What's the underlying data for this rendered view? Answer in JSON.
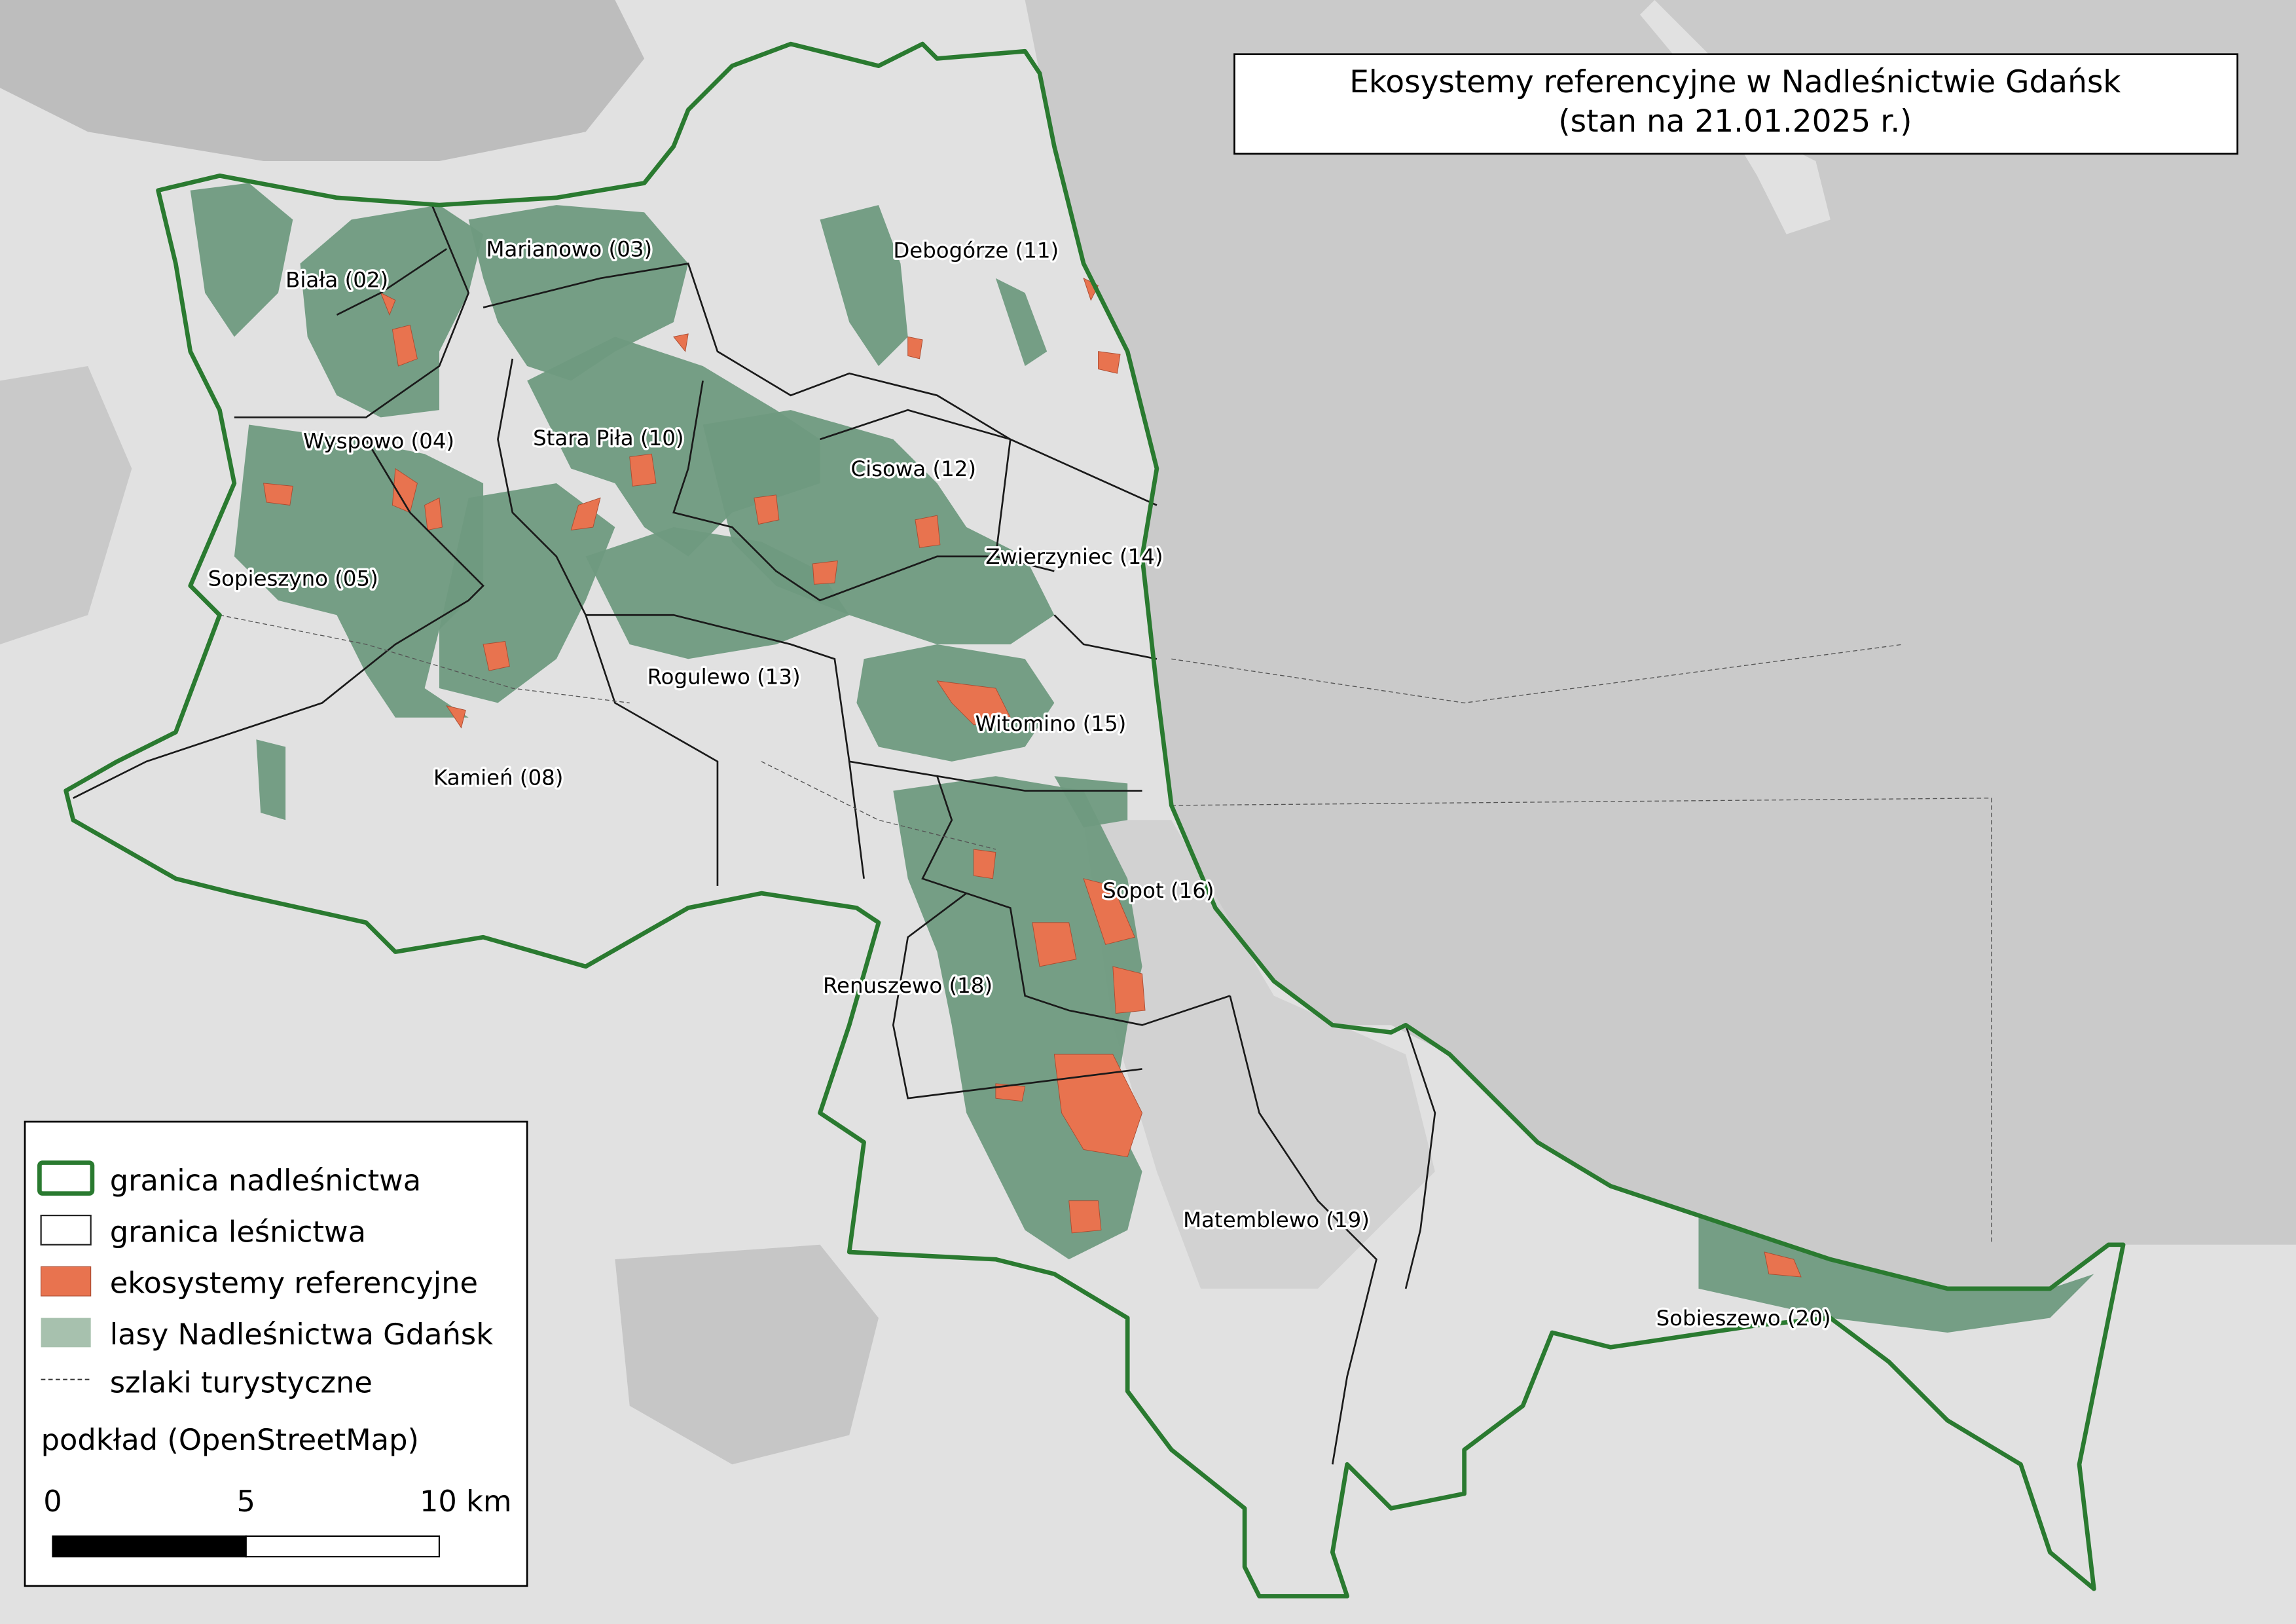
{
  "title": {
    "line1": "Ekosystemy referencyjne w Nadleśnictwie Gdańsk",
    "line2": "(stan na 21.01.2025 r.)"
  },
  "legend": {
    "items": [
      {
        "label": "granica nadleśnictwa",
        "symbol": "green-outline"
      },
      {
        "label": "granica leśnictwa",
        "symbol": "black-outline"
      },
      {
        "label": "ekosystemy referencyjne",
        "symbol": "orange-fill"
      },
      {
        "label": "lasy Nadleśnictwa Gdańsk",
        "symbol": "green-fill"
      },
      {
        "label": "szlaki turystyczne",
        "symbol": "dashed-line"
      }
    ],
    "basemap": "podkład (OpenStreetMap)",
    "scale": {
      "ticks": [
        "0",
        "5",
        "10 km"
      ]
    }
  },
  "districts": [
    "Biała (02)",
    "Marianowo (03)",
    "Wyspowo (04)",
    "Sopieszyno (05)",
    "Kamień (08)",
    "Stara Piła (10)",
    "Debogórze (11)",
    "Cisowa (12)",
    "Rogulewo (13)",
    "Zwierzyniec (14)",
    "Witomino (15)",
    "Sopot (16)",
    "Renuszewo (18)",
    "Matemblewo (19)",
    "Sobieszewo (20)"
  ],
  "colors": {
    "land": "#e1e1e1",
    "sea": "#cacaca",
    "forest": "#6f9a80",
    "reference_ecosystems": "#e8734f",
    "forest_district_boundary": "#2a7a30",
    "subdistrict_boundary": "#1a1a1a"
  }
}
